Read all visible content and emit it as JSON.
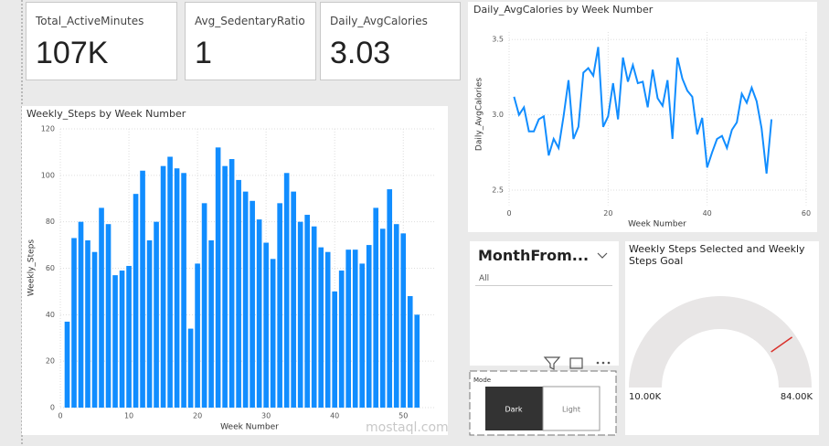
{
  "cards": [
    {
      "label": "Total_ActiveMinutes",
      "value": "107K"
    },
    {
      "label": "Avg_SedentaryRatio",
      "value": "1"
    },
    {
      "label": "Daily_AvgCalories",
      "value": "3.03"
    }
  ],
  "chart_data": [
    {
      "type": "line",
      "title": "Daily_AvgCalories by Week Number",
      "x_label": "Week Number",
      "y_label": "Daily_AvgCalories",
      "color": "#118DFF",
      "grid": true,
      "x": [
        1,
        2,
        3,
        4,
        5,
        6,
        7,
        8,
        9,
        10,
        11,
        12,
        13,
        14,
        15,
        16,
        17,
        18,
        19,
        20,
        21,
        22,
        23,
        24,
        25,
        26,
        27,
        28,
        29,
        30,
        31,
        32,
        33,
        34,
        35,
        36,
        37,
        38,
        39,
        40,
        41,
        42,
        43,
        44,
        45,
        46,
        47,
        48,
        49,
        50,
        51,
        52,
        53
      ],
      "values": [
        3.12,
        3.0,
        3.05,
        2.89,
        2.89,
        2.97,
        2.99,
        2.73,
        2.84,
        2.78,
        2.99,
        3.23,
        2.84,
        2.92,
        3.28,
        3.31,
        3.26,
        3.45,
        2.92,
        2.99,
        3.21,
        2.97,
        3.38,
        3.22,
        3.33,
        3.21,
        3.22,
        3.05,
        3.3,
        3.11,
        3.06,
        3.23,
        2.84,
        3.38,
        3.24,
        3.16,
        3.12,
        2.87,
        2.98,
        2.65,
        2.75,
        2.84,
        2.86,
        2.78,
        2.9,
        2.95,
        3.14,
        3.08,
        3.18,
        3.09,
        2.91,
        2.61,
        2.97
      ],
      "xlim": [
        0,
        60
      ],
      "xticks": [
        0,
        20,
        40,
        60
      ],
      "ylim": [
        2.4,
        3.55
      ],
      "yticks": [
        2.5,
        {
          "value": 3,
          "label": "3.0"
        },
        3.5
      ]
    },
    {
      "type": "bar",
      "title": "Weekly_Steps by Week Number",
      "x_label": "Week Number",
      "y_label": "Weekly_Steps",
      "color": "#118DFF",
      "grid": true,
      "x": [
        1,
        2,
        3,
        4,
        5,
        6,
        7,
        8,
        9,
        10,
        11,
        12,
        13,
        14,
        15,
        16,
        17,
        18,
        19,
        20,
        21,
        22,
        23,
        24,
        25,
        26,
        27,
        28,
        29,
        30,
        31,
        32,
        33,
        34,
        35,
        36,
        37,
        38,
        39,
        40,
        41,
        42,
        43,
        44,
        45,
        46,
        47,
        48,
        49,
        50,
        51,
        52
      ],
      "values": [
        37,
        73,
        80,
        72,
        67,
        86,
        79,
        57,
        59,
        61,
        92,
        102,
        72,
        80,
        104,
        108,
        103,
        101,
        34,
        62,
        88,
        72,
        112,
        104,
        107,
        98,
        93,
        89,
        81,
        71,
        64,
        88,
        101,
        93,
        80,
        83,
        78,
        69,
        67,
        50,
        59,
        68,
        68,
        62,
        70,
        86,
        77,
        94,
        79,
        75,
        48,
        40
      ],
      "xlim": [
        0,
        54.5
      ],
      "xticks": [
        0,
        10,
        20,
        30,
        40,
        50
      ],
      "ylim": [
        0,
        120
      ],
      "yticks": [
        0,
        20,
        40,
        60,
        80,
        100,
        120
      ]
    },
    {
      "type": "gauge",
      "title": "Weekly Steps Selected and Weekly Steps Goal",
      "range": [
        {
          "value": 10000,
          "label": "10.00K"
        },
        {
          "value": 84000,
          "label": "84.00K"
        }
      ],
      "target": 69600,
      "color": "#e8e6e6",
      "target_color": "#d9312b"
    }
  ],
  "slicer": {
    "title": "MonthFrom...",
    "selected": "All"
  },
  "mode": {
    "title": "Mode",
    "options": [
      "Dark",
      "Light"
    ]
  },
  "watermark": "mostaql.com"
}
